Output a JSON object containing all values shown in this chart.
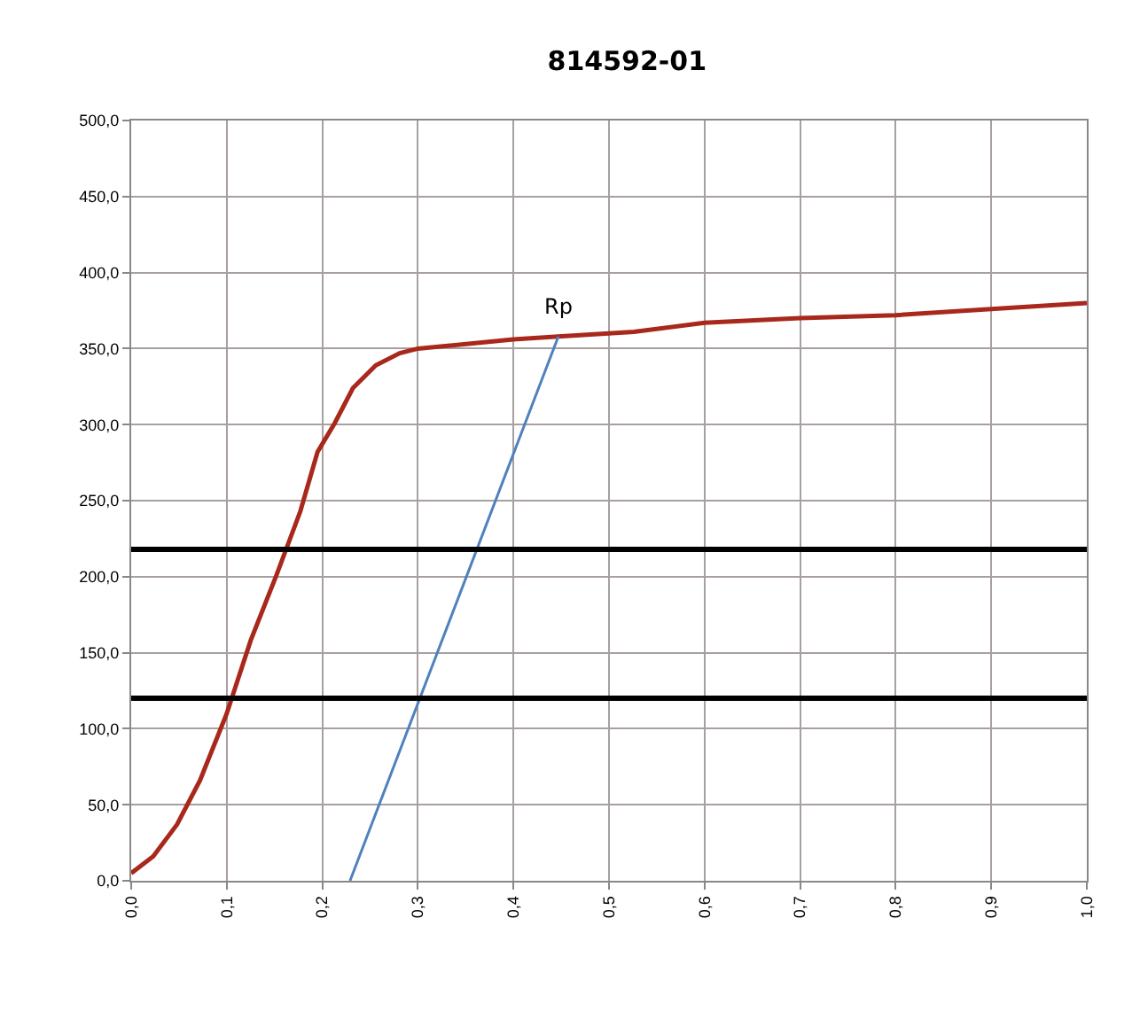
{
  "chart_data": {
    "type": "line",
    "title": "814592-01",
    "series": [
      {
        "color": "#a8281c",
        "x": [
          0,
          0.023,
          0.048,
          0.072,
          0.1,
          0.125,
          0.152,
          0.177,
          0.195,
          0.213,
          0.232,
          0.256,
          0.281,
          0.3,
          0.4,
          0.447,
          0.526,
          0.6,
          0.7,
          0.8,
          0.9,
          1.0
        ],
        "values": [
          5,
          16,
          37,
          66,
          110,
          158,
          201,
          243,
          282,
          301,
          324,
          339,
          347,
          350,
          356,
          358,
          361,
          367,
          370,
          372,
          376,
          380
        ]
      },
      {
        "color": "#4f81bd",
        "x": [
          0.229,
          0.447
        ],
        "values": [
          0,
          358
        ]
      }
    ],
    "xlim": [
      0,
      1
    ],
    "xticks": [
      {
        "value": 0,
        "label": "0,0"
      },
      {
        "value": 0.1,
        "label": "0,1"
      },
      {
        "value": 0.2,
        "label": "0,2"
      },
      {
        "value": 0.3,
        "label": "0,3"
      },
      {
        "value": 0.4,
        "label": "0,4"
      },
      {
        "value": 0.5,
        "label": "0,5"
      },
      {
        "value": 0.6,
        "label": "0,6"
      },
      {
        "value": 0.7,
        "label": "0,7"
      },
      {
        "value": 0.8,
        "label": "0,8"
      },
      {
        "value": 0.9,
        "label": "0,9"
      },
      {
        "value": 1,
        "label": "1,0"
      }
    ],
    "ylim": [
      0,
      500
    ],
    "yticks": [
      {
        "value": 0,
        "label": "0,0"
      },
      {
        "value": 50,
        "label": "50,0"
      },
      {
        "value": 100,
        "label": "100,0"
      },
      {
        "value": 150,
        "label": "150,0"
      },
      {
        "value": 200,
        "label": "200,0"
      },
      {
        "value": 250,
        "label": "250,0"
      },
      {
        "value": 300,
        "label": "300,0"
      },
      {
        "value": 350,
        "label": "350,0"
      },
      {
        "value": 400,
        "label": "400,0"
      },
      {
        "value": 450,
        "label": "450,0"
      },
      {
        "value": 500,
        "label": "500,0"
      }
    ],
    "ref_lines": [
      {
        "axis": "y",
        "value": 120,
        "color": "#000000"
      },
      {
        "axis": "y",
        "value": 218,
        "color": "#000000"
      }
    ],
    "annotations": [
      {
        "text": "Rp",
        "x": 0.447,
        "y": 358
      }
    ],
    "grid": true,
    "marker": "none",
    "line_style": "solid"
  }
}
